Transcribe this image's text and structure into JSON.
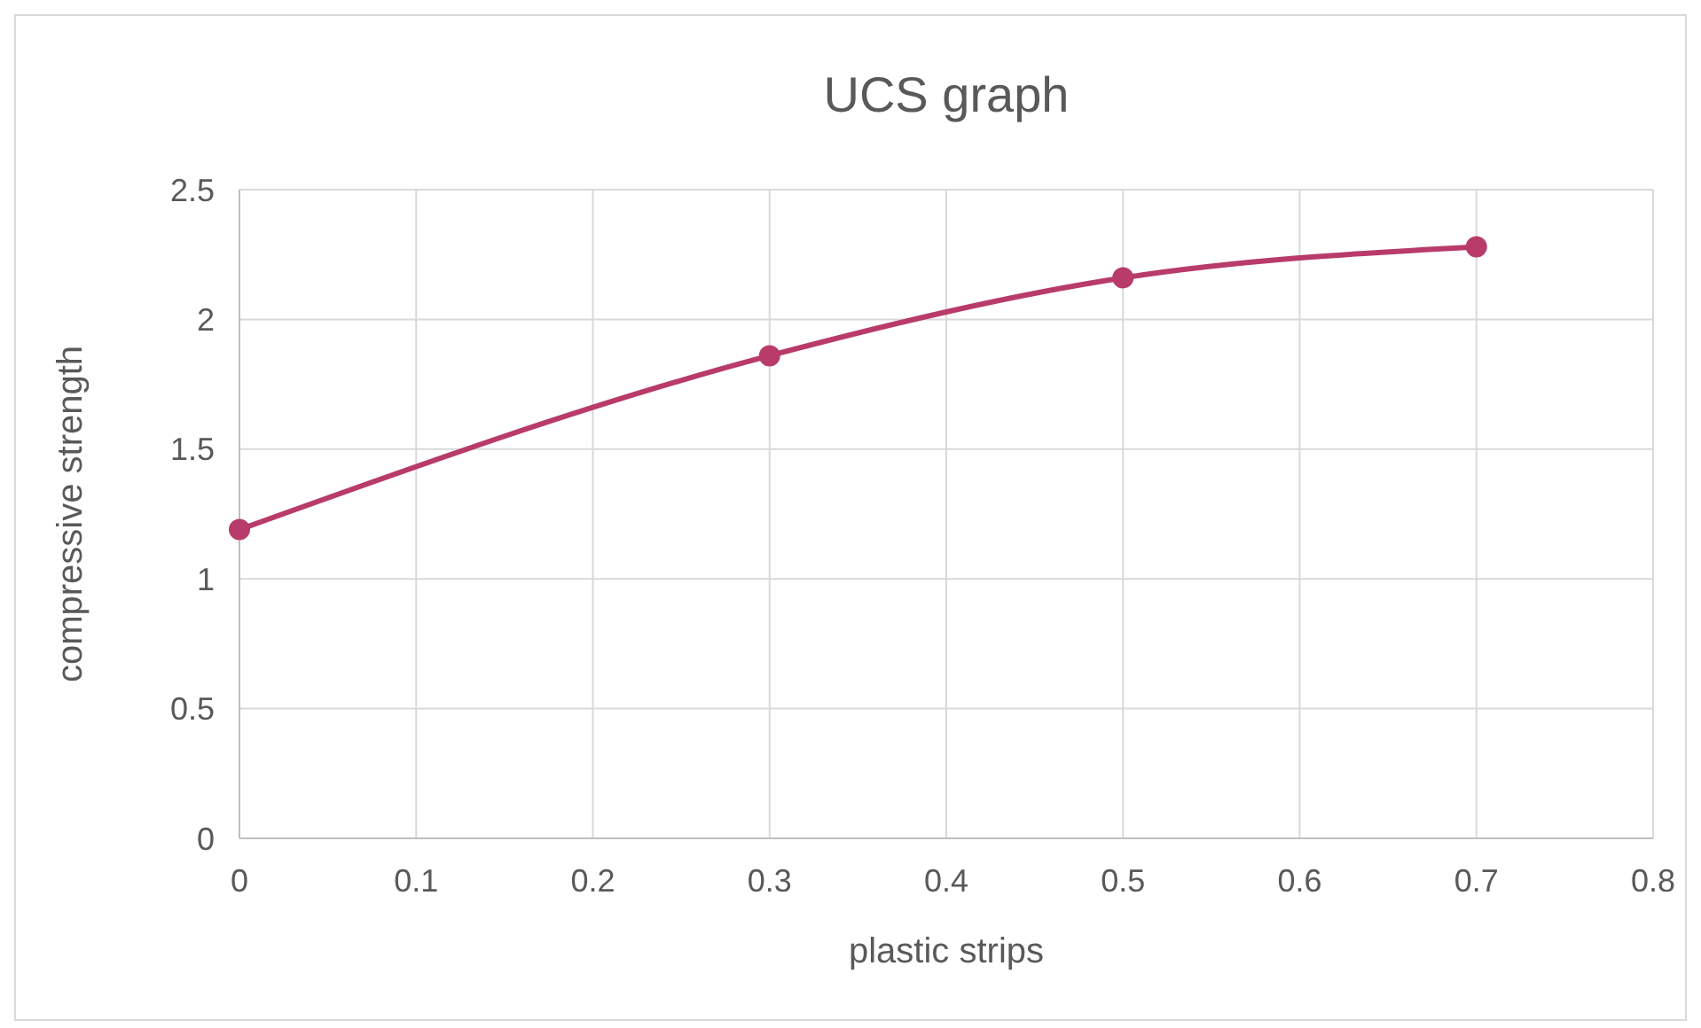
{
  "chart_data": {
    "type": "line",
    "title": "UCS graph",
    "xlabel": "plastic strips",
    "ylabel": "compressive strength",
    "x": [
      0,
      0.3,
      0.5,
      0.7
    ],
    "series": [
      {
        "color": "#b83b6a",
        "values": [
          1.19,
          1.86,
          2.16,
          2.28
        ]
      }
    ],
    "xlim": [
      0,
      0.8
    ],
    "xticks": [
      0,
      0.1,
      0.2,
      0.3,
      0.4,
      0.5,
      0.6,
      0.7,
      0.8
    ],
    "ylim": [
      0,
      2.5
    ],
    "yticks": [
      0,
      0.5,
      1,
      1.5,
      2,
      2.5
    ],
    "grid": true,
    "marker": "circle",
    "line_style": "solid"
  }
}
